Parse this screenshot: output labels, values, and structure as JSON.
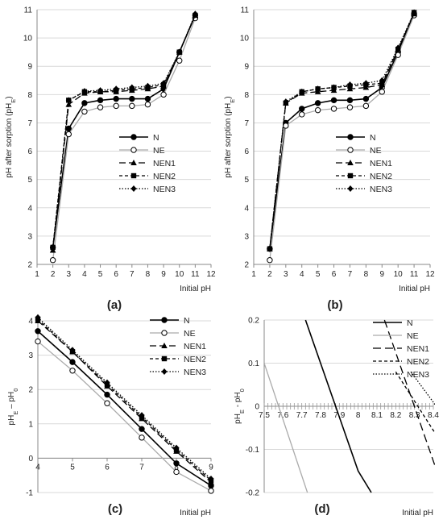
{
  "chart_data": [
    {
      "id": "a",
      "type": "line",
      "panel_label": "(a)",
      "xlabel": "Initial pH",
      "ylabel_main": "pH after sorption (pH",
      "ylabel_sub": "E",
      "ylabel_close": ")",
      "xlim": [
        1,
        12
      ],
      "ylim": [
        2,
        11
      ],
      "xticks": [
        1,
        2,
        3,
        4,
        5,
        6,
        7,
        8,
        9,
        10,
        11,
        12
      ],
      "yticks": [
        2,
        3,
        4,
        5,
        6,
        7,
        8,
        9,
        10,
        11
      ],
      "grid": true,
      "legend_position": "center-right",
      "x": [
        2,
        3,
        4,
        5,
        6,
        7,
        8,
        9,
        10,
        11
      ],
      "series": [
        {
          "name": "N",
          "values": [
            2.6,
            6.8,
            7.7,
            7.8,
            7.85,
            7.85,
            7.85,
            8.2,
            9.5,
            10.8
          ],
          "color": "#000000",
          "dash": "",
          "marker": "filled-circle"
        },
        {
          "name": "NE",
          "values": [
            2.15,
            6.6,
            7.4,
            7.55,
            7.6,
            7.6,
            7.65,
            8.0,
            9.2,
            10.7
          ],
          "color": "#aaaaaa",
          "dash": "",
          "marker": "open-circle"
        },
        {
          "name": "NEN1",
          "values": [
            2.5,
            7.65,
            8.05,
            8.1,
            8.1,
            8.15,
            8.2,
            8.3,
            9.5,
            10.8
          ],
          "color": "#000000",
          "dash": "8,4",
          "marker": "triangle"
        },
        {
          "name": "NEN2",
          "values": [
            2.6,
            7.8,
            8.1,
            8.1,
            8.15,
            8.2,
            8.25,
            8.35,
            9.5,
            10.8
          ],
          "color": "#000000",
          "dash": "4,3",
          "marker": "square"
        },
        {
          "name": "NEN3",
          "values": [
            2.6,
            7.8,
            8.12,
            8.15,
            8.2,
            8.25,
            8.3,
            8.4,
            9.5,
            10.85
          ],
          "color": "#000000",
          "dash": "1.5,2",
          "marker": "diamond"
        }
      ]
    },
    {
      "id": "b",
      "type": "line",
      "panel_label": "(b)",
      "xlabel": "Initial pH",
      "ylabel_main": "pH after sorption (pH",
      "ylabel_sub": "E",
      "ylabel_close": ")",
      "xlim": [
        1,
        12
      ],
      "ylim": [
        2,
        11
      ],
      "xticks": [
        1,
        2,
        3,
        4,
        5,
        6,
        7,
        8,
        9,
        10,
        11,
        12
      ],
      "yticks": [
        2,
        3,
        4,
        5,
        6,
        7,
        8,
        9,
        10,
        11
      ],
      "grid": true,
      "legend_position": "center-right",
      "x": [
        2,
        3,
        4,
        5,
        6,
        7,
        8,
        9,
        10,
        11
      ],
      "series": [
        {
          "name": "N",
          "values": [
            2.55,
            7.0,
            7.5,
            7.7,
            7.8,
            7.8,
            7.85,
            8.25,
            9.5,
            10.85
          ],
          "color": "#000000",
          "dash": "",
          "marker": "filled-circle"
        },
        {
          "name": "NE",
          "values": [
            2.15,
            6.9,
            7.3,
            7.45,
            7.5,
            7.55,
            7.6,
            8.1,
            9.4,
            10.8
          ],
          "color": "#aaaaaa",
          "dash": "",
          "marker": "open-circle"
        },
        {
          "name": "NEN1",
          "values": [
            2.55,
            7.7,
            8.05,
            8.1,
            8.15,
            8.2,
            8.25,
            8.35,
            9.6,
            10.85
          ],
          "color": "#000000",
          "dash": "8,4",
          "marker": "triangle"
        },
        {
          "name": "NEN2",
          "values": [
            2.55,
            7.7,
            8.1,
            8.2,
            8.25,
            8.3,
            8.35,
            8.4,
            9.6,
            10.9
          ],
          "color": "#000000",
          "dash": "4,3",
          "marker": "square"
        },
        {
          "name": "NEN3",
          "values": [
            2.55,
            7.75,
            8.1,
            8.2,
            8.25,
            8.35,
            8.4,
            8.5,
            9.65,
            10.9
          ],
          "color": "#000000",
          "dash": "1.5,2",
          "marker": "diamond"
        }
      ]
    },
    {
      "id": "c",
      "type": "line",
      "panel_label": "(c)",
      "xlabel": "Initial pH",
      "ylabel_main": "pH",
      "ylabel_sub": "E",
      "ylabel_mid": " – pH",
      "ylabel_sub2": "0",
      "xlim": [
        4,
        9
      ],
      "ylim": [
        -1,
        4
      ],
      "xticks": [
        4,
        5,
        6,
        7,
        8,
        9
      ],
      "yticks": [
        -1,
        0,
        1,
        2,
        3,
        4
      ],
      "grid": true,
      "legend_position": "top-right",
      "x": [
        4,
        5,
        6,
        7,
        8,
        9
      ],
      "series": [
        {
          "name": "N",
          "values": [
            3.7,
            2.8,
            1.85,
            0.85,
            -0.15,
            -0.8
          ],
          "color": "#000000",
          "dash": "",
          "marker": "filled-circle"
        },
        {
          "name": "NE",
          "values": [
            3.4,
            2.55,
            1.6,
            0.6,
            -0.4,
            -0.95
          ],
          "color": "#aaaaaa",
          "dash": "",
          "marker": "open-circle"
        },
        {
          "name": "NEN1",
          "values": [
            4.0,
            3.1,
            2.1,
            1.15,
            0.2,
            -0.7
          ],
          "color": "#000000",
          "dash": "8,4",
          "marker": "triangle"
        },
        {
          "name": "NEN2",
          "values": [
            4.05,
            3.1,
            2.15,
            1.2,
            0.25,
            -0.65
          ],
          "color": "#000000",
          "dash": "4,3",
          "marker": "square"
        },
        {
          "name": "NEN3",
          "values": [
            4.1,
            3.15,
            2.2,
            1.25,
            0.3,
            -0.6
          ],
          "color": "#000000",
          "dash": "1.5,2",
          "marker": "diamond"
        }
      ]
    },
    {
      "id": "d",
      "type": "line",
      "panel_label": "(d)",
      "xlabel": "Initial pH",
      "ylabel_main": "pH",
      "ylabel_sub": "E",
      "ylabel_mid": " - pH",
      "ylabel_sub2": "0",
      "xlim": [
        7.5,
        8.4
      ],
      "ylim": [
        -0.2,
        0.2
      ],
      "xticks": [
        7.5,
        7.6,
        7.7,
        7.8,
        7.9,
        8,
        8.1,
        8.2,
        8.3,
        8.4
      ],
      "xtick_labels": [
        "7.5",
        "7.6",
        "7.7",
        "7.8",
        "7.9",
        "8",
        "8.1",
        "8.2",
        "8.3",
        "8.4"
      ],
      "yticks": [
        -0.2,
        -0.1,
        0,
        0.1,
        0.2
      ],
      "ytick_labels": [
        "-0.2",
        "-0.1",
        "0",
        "0.1",
        "0.2"
      ],
      "grid": true,
      "legend_position": "top-right",
      "series": [
        {
          "name": "N",
          "x": [
            7.72,
            8.0,
            8.07
          ],
          "values": [
            0.2,
            -0.15,
            -0.2
          ],
          "color": "#000000",
          "dash": "",
          "marker": "none"
        },
        {
          "name": "NE",
          "x": [
            7.5,
            7.73
          ],
          "values": [
            0.1,
            -0.2
          ],
          "color": "#aaaaaa",
          "dash": "",
          "marker": "none"
        },
        {
          "name": "NEN1",
          "x": [
            8.14,
            8.45
          ],
          "values": [
            0.2,
            -0.19
          ],
          "color": "#000000",
          "dash": "10,5",
          "marker": "none"
        },
        {
          "name": "NEN2",
          "x": [
            8.2,
            8.45
          ],
          "values": [
            0.08,
            -0.09
          ],
          "color": "#000000",
          "dash": "4,3",
          "marker": "none"
        },
        {
          "name": "NEN3",
          "x": [
            8.28,
            8.45
          ],
          "values": [
            0.08,
            -0.02
          ],
          "color": "#000000",
          "dash": "1.5,2",
          "marker": "none"
        }
      ]
    }
  ]
}
